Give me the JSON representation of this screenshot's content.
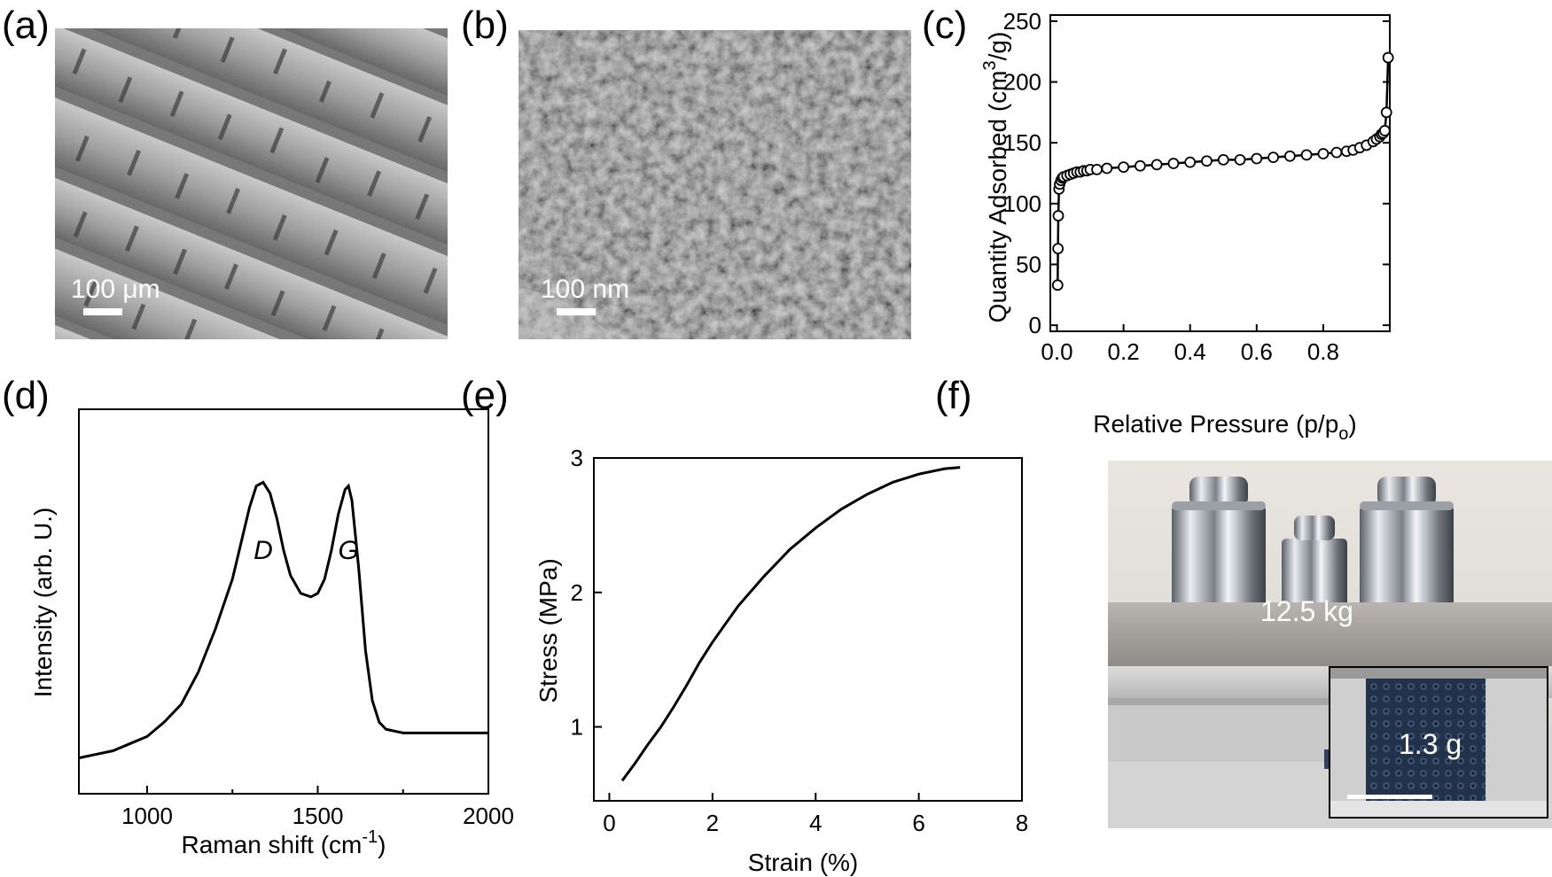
{
  "panels": {
    "a": {
      "label": "(a)",
      "scale_text": "100 μm"
    },
    "b": {
      "label": "(b)",
      "scale_text": "100 nm"
    },
    "c": {
      "label": "(c)"
    },
    "d": {
      "label": "(d)"
    },
    "e": {
      "label": "(e)"
    },
    "f": {
      "label": "(f)",
      "plate_text": "12.5 kg",
      "inset_text": "1.3 g"
    }
  },
  "chart_data": [
    {
      "id": "c",
      "type": "scatter",
      "xlabel": "Relative Pressure (p/p",
      "xlabel_sub": "o",
      "xlabel_end": ")",
      "ylabel": "Quantity Adsorbed (cm",
      "ylabel_sup": "3",
      "ylabel_end": "/g)",
      "xlim": [
        -0.02,
        1.0
      ],
      "ylim": [
        -5,
        255
      ],
      "xticks": [
        "0.0",
        "0.2",
        "0.4",
        "0.6",
        "0.8"
      ],
      "yticks": [
        "0",
        "50",
        "100",
        "150",
        "200",
        "250"
      ],
      "marker": "open-circle",
      "line": true,
      "x": [
        0.002,
        0.003,
        0.004,
        0.006,
        0.008,
        0.012,
        0.016,
        0.02,
        0.03,
        0.04,
        0.05,
        0.06,
        0.07,
        0.08,
        0.09,
        0.1,
        0.12,
        0.15,
        0.2,
        0.25,
        0.3,
        0.35,
        0.4,
        0.45,
        0.5,
        0.55,
        0.6,
        0.65,
        0.7,
        0.75,
        0.8,
        0.84,
        0.87,
        0.89,
        0.91,
        0.93,
        0.95,
        0.96,
        0.97,
        0.975,
        0.98,
        0.985,
        0.99,
        0.995
      ],
      "y": [
        33,
        63,
        90,
        112,
        116,
        119,
        121,
        122,
        123,
        124,
        125,
        126,
        126,
        127,
        127,
        128,
        128,
        129,
        130,
        131,
        132,
        133,
        134,
        135,
        136,
        136,
        137,
        138,
        139,
        140,
        141,
        142,
        143,
        144,
        146,
        148,
        151,
        153,
        155,
        157,
        158,
        160,
        175,
        220
      ]
    },
    {
      "id": "d",
      "type": "line",
      "xlabel": "Raman shift (cm",
      "xlabel_sup": "-1",
      "xlabel_end": ")",
      "ylabel": "Intensity (arb. U.)",
      "xlim": [
        800,
        2000
      ],
      "ylim": [
        0,
        1
      ],
      "xticks": [
        "1000",
        "1500",
        "2000"
      ],
      "xtick_values": [
        1000,
        1500,
        2000
      ],
      "peaks": [
        {
          "label": "D",
          "x": 1340
        },
        {
          "label": "G",
          "x": 1590
        }
      ],
      "x": [
        800,
        850,
        900,
        950,
        1000,
        1050,
        1100,
        1150,
        1200,
        1250,
        1280,
        1300,
        1320,
        1340,
        1360,
        1380,
        1400,
        1420,
        1450,
        1480,
        1500,
        1520,
        1540,
        1560,
        1580,
        1590,
        1600,
        1620,
        1640,
        1660,
        1680,
        1700,
        1750,
        1800,
        1850,
        1900,
        1950,
        2000
      ],
      "y": [
        0.1,
        0.11,
        0.12,
        0.14,
        0.16,
        0.2,
        0.25,
        0.34,
        0.46,
        0.6,
        0.72,
        0.8,
        0.86,
        0.87,
        0.84,
        0.77,
        0.68,
        0.61,
        0.56,
        0.55,
        0.56,
        0.6,
        0.68,
        0.78,
        0.85,
        0.86,
        0.82,
        0.63,
        0.4,
        0.26,
        0.2,
        0.18,
        0.17,
        0.17,
        0.17,
        0.17,
        0.17,
        0.17
      ]
    },
    {
      "id": "e",
      "type": "line",
      "xlabel": "Strain (%)",
      "ylabel": "Stress (MPa)",
      "xlim": [
        -0.3,
        8.0
      ],
      "ylim": [
        0.45,
        3.0
      ],
      "xticks": [
        "0",
        "2",
        "4",
        "6",
        "8"
      ],
      "xtick_values": [
        0,
        2,
        4,
        6,
        8
      ],
      "yticks": [
        "1",
        "2",
        "3"
      ],
      "ytick_values": [
        1,
        2,
        3
      ],
      "x": [
        0.25,
        0.5,
        0.75,
        1.0,
        1.25,
        1.5,
        1.75,
        2.0,
        2.5,
        3.0,
        3.5,
        4.0,
        4.5,
        5.0,
        5.5,
        6.0,
        6.5,
        6.8
      ],
      "y": [
        0.6,
        0.73,
        0.87,
        1.0,
        1.15,
        1.31,
        1.48,
        1.63,
        1.9,
        2.12,
        2.32,
        2.48,
        2.62,
        2.73,
        2.82,
        2.88,
        2.92,
        2.93
      ]
    }
  ]
}
